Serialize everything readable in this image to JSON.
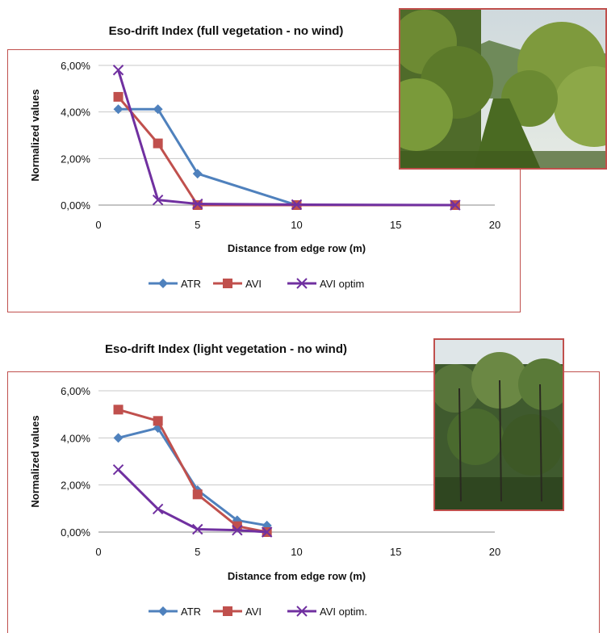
{
  "chart_data": [
    {
      "type": "line",
      "title": "Eso-drift Index (full vegetation - no wind)",
      "xlabel": "Distance from edge row (m)",
      "ylabel": "Normalized values",
      "xlim": [
        0,
        20
      ],
      "ylim": [
        0,
        0.06
      ],
      "x_ticks": [
        "0",
        "5",
        "10",
        "15",
        "20"
      ],
      "y_ticks": [
        "0,00%",
        "2,00%",
        "4,00%",
        "6,00%"
      ],
      "grid": "horizontal",
      "legend": "bottom",
      "series": [
        {
          "name": "ATR",
          "color": "#4f81bd",
          "marker": "diamond",
          "x": [
            1,
            3,
            5,
            10,
            18
          ],
          "y": [
            0.0412,
            0.0412,
            0.0135,
            0.0,
            0.0
          ]
        },
        {
          "name": "AVI",
          "color": "#c0504d",
          "marker": "square",
          "x": [
            1,
            3,
            5,
            10,
            18
          ],
          "y": [
            0.0465,
            0.0265,
            0.0,
            0.0,
            0.0
          ]
        },
        {
          "name": "AVI optim",
          "color": "#7030a0",
          "marker": "x",
          "x": [
            1,
            3,
            5,
            10,
            18
          ],
          "y": [
            0.058,
            0.0022,
            0.0005,
            0.0002,
            0.0
          ]
        }
      ]
    },
    {
      "type": "line",
      "title": "Eso-drift Index (light vegetation - no wind)",
      "xlabel": "Distance from edge row (m)",
      "ylabel": "Normalized values",
      "xlim": [
        0,
        20
      ],
      "ylim": [
        0,
        0.06
      ],
      "x_ticks": [
        "0",
        "5",
        "10",
        "15",
        "20"
      ],
      "y_ticks": [
        "0,00%",
        "2,00%",
        "4,00%",
        "6,00%"
      ],
      "grid": "horizontal",
      "legend": "bottom",
      "series": [
        {
          "name": "ATR",
          "color": "#4f81bd",
          "marker": "diamond",
          "x": [
            1,
            3,
            5,
            7,
            8.5
          ],
          "y": [
            0.04,
            0.0442,
            0.0178,
            0.005,
            0.0028
          ]
        },
        {
          "name": "AVI",
          "color": "#c0504d",
          "marker": "square",
          "x": [
            1,
            3,
            5,
            7,
            8.5
          ],
          "y": [
            0.052,
            0.0472,
            0.016,
            0.0025,
            0.0
          ]
        },
        {
          "name": "AVI optim.",
          "color": "#7030a0",
          "marker": "x",
          "x": [
            1,
            3,
            5,
            7,
            8.5
          ],
          "y": [
            0.0265,
            0.0098,
            0.0012,
            0.0008,
            0.0
          ]
        }
      ]
    }
  ]
}
